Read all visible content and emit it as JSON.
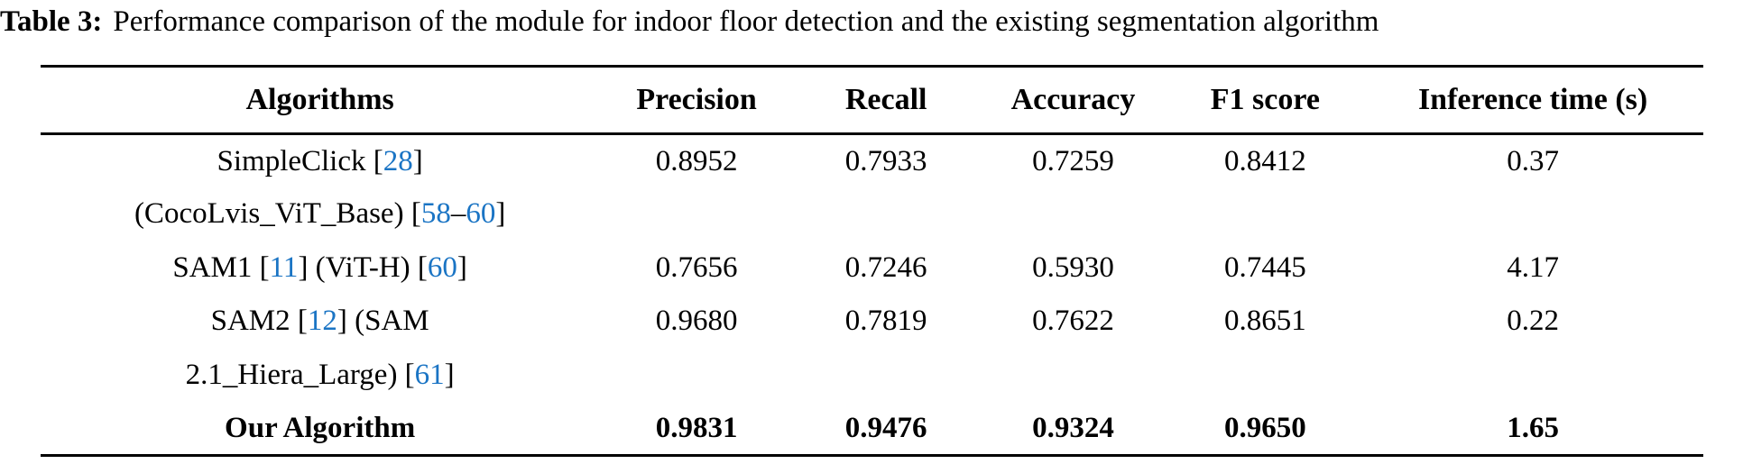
{
  "title": {
    "label": "Table 3:",
    "text": "Performance comparison of the module for indoor floor detection and the existing segmentation algorithm"
  },
  "colors": {
    "citation": "#1a74c4",
    "text": "#000000",
    "background": "#ffffff"
  },
  "chart_data": {
    "type": "table",
    "title": "Performance comparison of the module for indoor floor detection and the existing segmentation algorithm",
    "columns": [
      "Algorithms",
      "Precision",
      "Recall",
      "Accuracy",
      "F1 score",
      "Inference time (s)"
    ],
    "rows": [
      {
        "algorithm": "SimpleClick [28] (CocoLvis_ViT_Base) [58–60]",
        "precision": 0.8952,
        "recall": 0.7933,
        "accuracy": 0.7259,
        "f1_score": 0.8412,
        "inference_time_s": 0.37
      },
      {
        "algorithm": "SAM1 [11] (ViT-H) [60]",
        "precision": 0.7656,
        "recall": 0.7246,
        "accuracy": 0.593,
        "f1_score": 0.7445,
        "inference_time_s": 4.17
      },
      {
        "algorithm": "SAM2 [12] (SAM 2.1_Hiera_Large) [61]",
        "precision": 0.968,
        "recall": 0.7819,
        "accuracy": 0.7622,
        "f1_score": 0.8651,
        "inference_time_s": 0.22
      },
      {
        "algorithm": "Our Algorithm",
        "precision": 0.9831,
        "recall": 0.9476,
        "accuracy": 0.9324,
        "f1_score": 0.965,
        "inference_time_s": 1.65
      }
    ]
  },
  "table": {
    "headers": [
      "Algorithms",
      "Precision",
      "Recall",
      "Accuracy",
      "F1 score",
      "Inference time (s)"
    ],
    "rows": [
      {
        "bold": false,
        "name_lines": [
          [
            {
              "text": "SimpleClick ["
            },
            {
              "text": "28",
              "cite": true
            },
            {
              "text": "]"
            }
          ],
          [
            {
              "text": "(CocoLvis_ViT_Base) ["
            },
            {
              "text": "58",
              "cite": true
            },
            {
              "text": "–"
            },
            {
              "text": "60",
              "cite": true
            },
            {
              "text": "]"
            }
          ]
        ],
        "values": [
          "0.8952",
          "0.7933",
          "0.7259",
          "0.8412",
          "0.37"
        ]
      },
      {
        "bold": false,
        "name_lines": [
          [
            {
              "text": "SAM1 ["
            },
            {
              "text": "11",
              "cite": true
            },
            {
              "text": "] (ViT-H) ["
            },
            {
              "text": "60",
              "cite": true
            },
            {
              "text": "]"
            }
          ]
        ],
        "values": [
          "0.7656",
          "0.7246",
          "0.5930",
          "0.7445",
          "4.17"
        ]
      },
      {
        "bold": false,
        "name_lines": [
          [
            {
              "text": "SAM2 ["
            },
            {
              "text": "12",
              "cite": true
            },
            {
              "text": "] (SAM"
            }
          ],
          [
            {
              "text": "2.1_Hiera_Large) ["
            },
            {
              "text": "61",
              "cite": true
            },
            {
              "text": "]"
            }
          ]
        ],
        "values": [
          "0.9680",
          "0.7819",
          "0.7622",
          "0.8651",
          "0.22"
        ]
      },
      {
        "bold": true,
        "name_lines": [
          [
            {
              "text": "Our Algorithm"
            }
          ]
        ],
        "values": [
          "0.9831",
          "0.9476",
          "0.9324",
          "0.9650",
          "1.65"
        ]
      }
    ],
    "column_widths_pct": [
      33.6,
      11.7,
      11.1,
      11.4,
      11.7,
      20.5
    ]
  }
}
